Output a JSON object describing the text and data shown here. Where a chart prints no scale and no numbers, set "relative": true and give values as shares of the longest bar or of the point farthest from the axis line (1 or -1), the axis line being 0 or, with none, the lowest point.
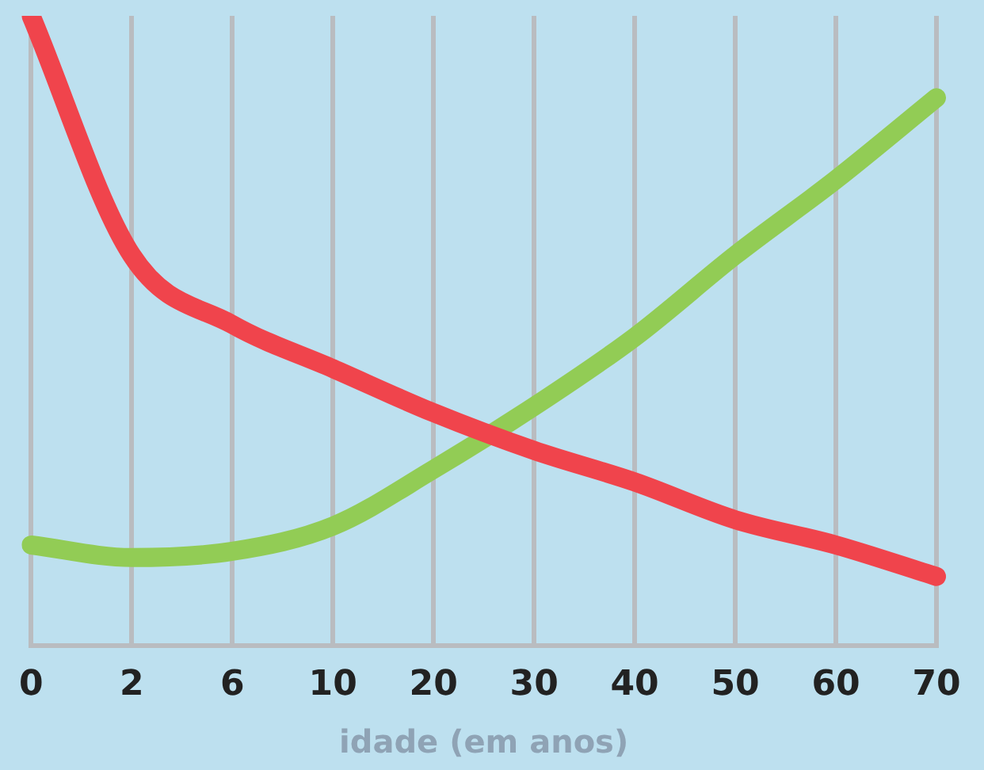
{
  "chart_data": {
    "type": "line",
    "xlabel": "idade (em anos)",
    "categories": [
      "0",
      "2",
      "6",
      "10",
      "20",
      "30",
      "40",
      "50",
      "60",
      "70"
    ],
    "relative": true,
    "grid": "x",
    "marker": "none",
    "line_style": "solid",
    "series": [
      {
        "color": "#f0444c",
        "values": [
          1.0,
          0.62,
          0.51,
          0.44,
          0.37,
          0.31,
          0.26,
          0.2,
          0.16,
          0.11
        ]
      },
      {
        "color": "#92cc55",
        "values": [
          0.16,
          0.14,
          0.15,
          0.19,
          0.28,
          0.38,
          0.49,
          0.62,
          0.74,
          0.87
        ]
      }
    ]
  }
}
